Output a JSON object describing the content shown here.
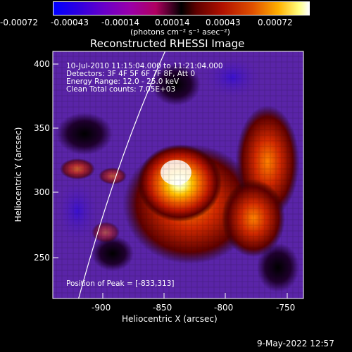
{
  "colorbar": {
    "tick_labels": [
      "-0.00072",
      "-0.00043",
      "-0.00014",
      "0.00014",
      "0.00043",
      "0.00072"
    ],
    "units_text": "(photons cm⁻² s⁻¹ asec⁻²)"
  },
  "image": {
    "title": "Reconstructed RHESSI Image",
    "time_range": "10-Jul-2010 11:15:04.000 to 11:21:04.000",
    "detectors": "Detectors: 3F 4F 5F 6F 7F 8F, Att 0",
    "energy_range": "Energy Range: 12.0 - 25.0 keV",
    "clean_counts": "Clean     Total counts: 7.05E+03",
    "peak_position": "Position of Peak = [-833,313]",
    "x_ticks": [
      "-900",
      "-850",
      "-800",
      "-750"
    ],
    "y_ticks": [
      "400",
      "350",
      "300",
      "250"
    ],
    "xlabel": "Heliocentric X (arcsec)",
    "ylabel": "Heliocentric Y (arcsec)"
  },
  "footer": {
    "timestamp": "9-May-2022 12:57"
  },
  "colors": {
    "background": "#000000",
    "text": "#ffffff",
    "min_color": "#1a00c0",
    "max_color": "#ffffff"
  }
}
